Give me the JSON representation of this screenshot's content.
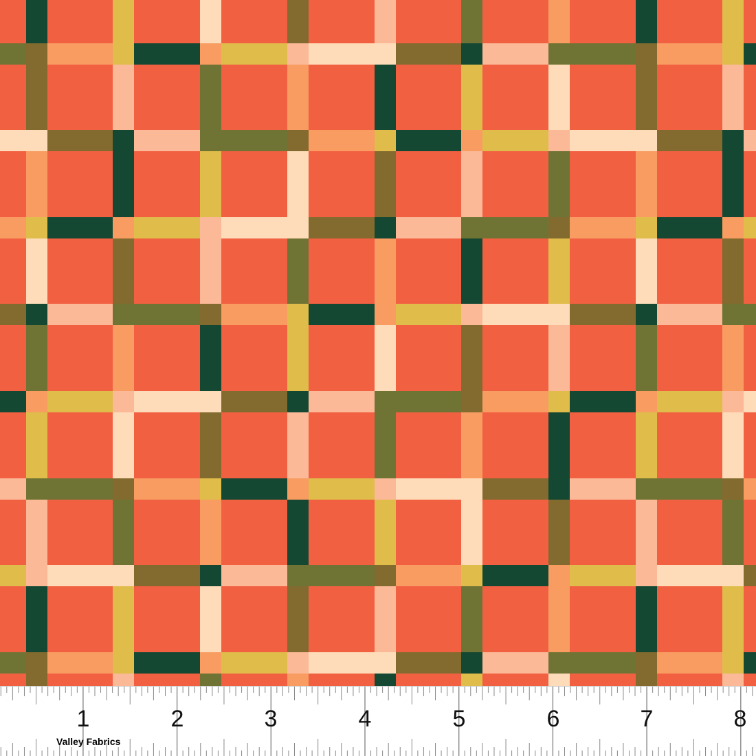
{
  "fabric": {
    "pattern": "plaid",
    "colors": {
      "background": "#F26042",
      "dark_green": "#144832",
      "olive": "#6F7434",
      "brown_olive": "#836B2F",
      "mustard": "#E0BC4A",
      "peach": "#F89C62",
      "light_peach": "#FBB997",
      "cream": "#FEDCB9"
    }
  },
  "ruler": {
    "numbers": [
      "1",
      "2",
      "3",
      "4",
      "5",
      "6",
      "7",
      "8"
    ],
    "brand": "Valley Fabrics"
  }
}
